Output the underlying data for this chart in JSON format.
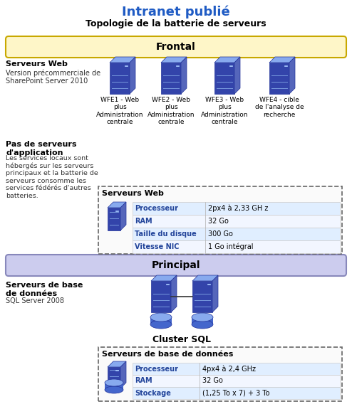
{
  "title": "Intranet publié",
  "subtitle": "Topologie de la batterie de serveurs",
  "title_color": "#1F5BC4",
  "subtitle_color": "#000000",
  "frontal_label": "Frontal",
  "principal_label": "Principal",
  "frontal_bg": "#FEF6C8",
  "frontal_border": "#C8A800",
  "principal_bg": "#CCCCEE",
  "principal_border": "#8888BB",
  "left_text_web_title": "Serveurs Web",
  "left_text_web_sub": "Version précommerciale de\nSharePoint Server 2010",
  "left_text_app_title": "Pas de serveurs\nd'application",
  "left_text_app_body": "Les services locaux sont\nhébergés sur les serveurs\nprincipaux et la batterie de\nserveurs consomme les\nservices fédérés d'autres\nbatteries.",
  "left_text_db_title": "Serveurs de base\nde données",
  "left_text_db_sub": "SQL Server 2008",
  "server_labels": [
    "WFE1 - Web\nplus\nAdministration\ncentrale",
    "WFE2 - Web\nplus\nAdministration\ncentrale",
    "WFE3 - Web\nplus\nAdministration\ncentrale",
    "WFE4 - cible\nde l'analyse de\nrecherche"
  ],
  "web_table_title": "Serveurs Web",
  "web_table_rows": [
    [
      "Processeur",
      "2px4 à 2,33 GH z"
    ],
    [
      "RAM",
      "32 Go"
    ],
    [
      "Taille du disque",
      "300 Go"
    ],
    [
      "Vitesse NIC",
      "1 Go intégral"
    ]
  ],
  "cluster_label": "Cluster SQL",
  "db_table_title": "Serveurs de base de données",
  "db_table_rows": [
    [
      "Processeur",
      "4px4 à 2,4 GHz"
    ],
    [
      "RAM",
      "32 Go"
    ],
    [
      "Stockage",
      "(1,25 To x 7) + 3 To"
    ]
  ],
  "row_label_color": "#22449A",
  "background_color": "#FFFFFF"
}
